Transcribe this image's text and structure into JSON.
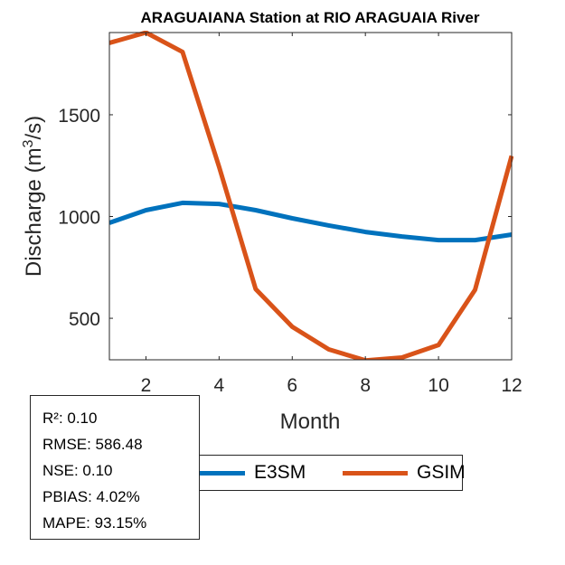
{
  "chart_data": {
    "type": "line",
    "title": "ARAGUAIANA  Station at  RIO ARAGUAIA  River",
    "xlabel": "Month",
    "ylabel_prefix": "Discharge (m",
    "ylabel_superscript": "3",
    "ylabel_suffix": "/s)",
    "xlim": [
      1,
      12
    ],
    "ylim": [
      296,
      1904
    ],
    "xticks": [
      2,
      4,
      6,
      8,
      10,
      12
    ],
    "xtick_labels": [
      "2",
      "4",
      "6",
      "8",
      "10",
      "12"
    ],
    "yticks": [
      500,
      1000,
      1500
    ],
    "ytick_labels": [
      "500",
      "1000",
      "1500"
    ],
    "grid": false,
    "x": [
      1,
      2,
      3,
      4,
      5,
      6,
      7,
      8,
      9,
      10,
      11,
      12
    ],
    "series": [
      {
        "name": "E3SM",
        "color": "#0072BD",
        "values": [
          969,
          1031,
          1067,
          1062,
          1031,
          991,
          956,
          924,
          902,
          884,
          884,
          911
        ]
      },
      {
        "name": "GSIM",
        "color": "#D95319",
        "values": [
          1853,
          1904,
          1809,
          1244,
          644,
          458,
          347,
          293,
          307,
          369,
          640,
          1298
        ]
      }
    ],
    "legend": {
      "placement": "bottom-center",
      "orientation": "horizontal",
      "entries": [
        "E3SM",
        "GSIM"
      ]
    },
    "annotation": {
      "placement": "bottom-left",
      "lines": [
        "R²: 0.10",
        "RMSE: 586.48",
        "NSE: 0.10",
        "PBIAS: 4.02%",
        "MAPE: 93.15%"
      ]
    }
  }
}
